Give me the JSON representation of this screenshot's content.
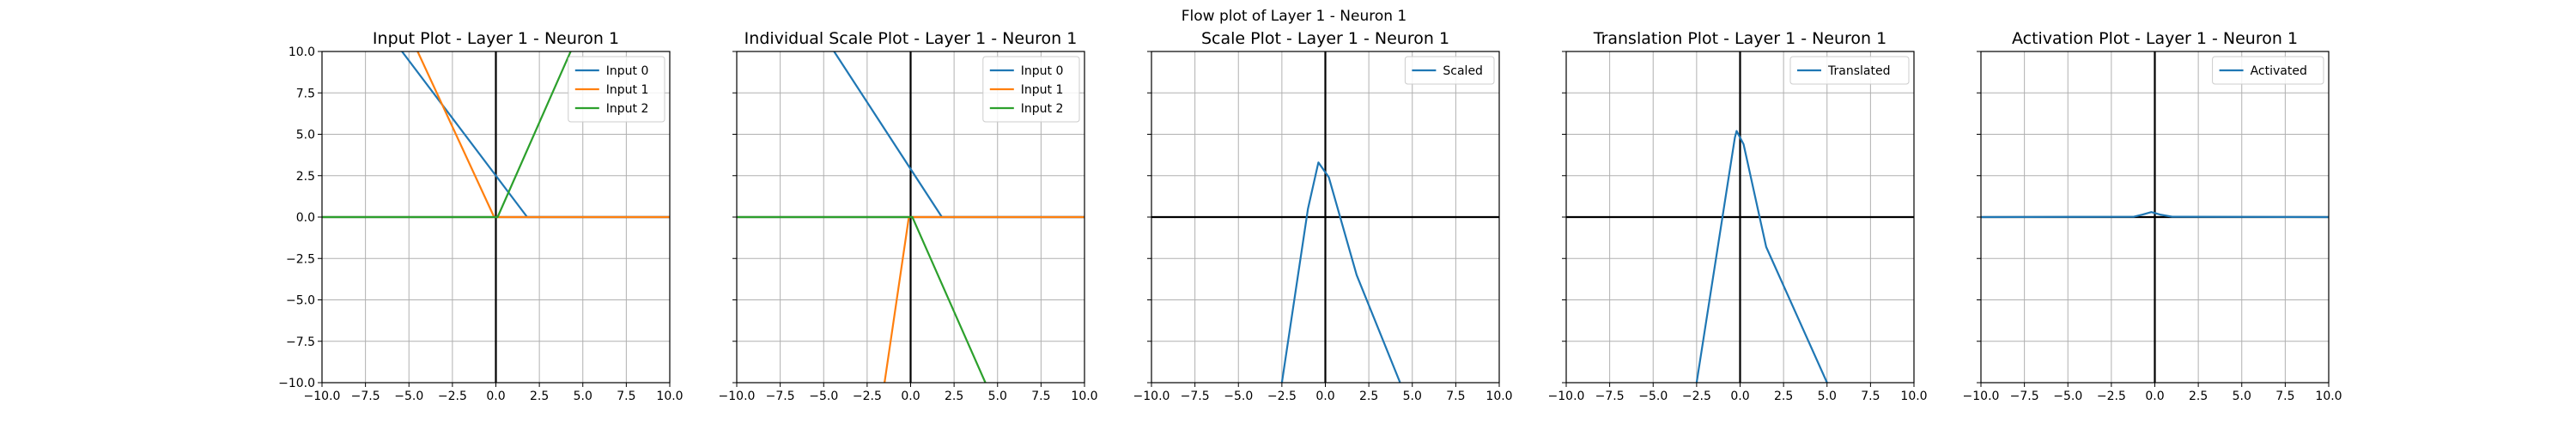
{
  "suptitle": "Flow plot of Layer 1 - Neuron 1",
  "colors": {
    "blue": "#1f77b4",
    "orange": "#ff7f0e",
    "green": "#2ca02c",
    "grid": "#b0b0b0",
    "axis": "#000000"
  },
  "chart_data": [
    {
      "type": "line",
      "title": "Input Plot - Layer 1 - Neuron 1",
      "xlim": [
        -10,
        10
      ],
      "ylim": [
        -10,
        10
      ],
      "xticks": [
        "−10.0",
        "−7.5",
        "−5.0",
        "−2.5",
        "0.0",
        "2.5",
        "5.0",
        "7.5",
        "10.0"
      ],
      "yticks": [
        "−10.0",
        "−7.5",
        "−5.0",
        "−2.5",
        "0.0",
        "2.5",
        "5.0",
        "7.5",
        "10.0"
      ],
      "grid": true,
      "legend": "top-right",
      "show_yticklabels": true,
      "series": [
        {
          "name": "Input 0",
          "color": "#1f77b4",
          "x": [
            -10,
            -5.4,
            1.8,
            10
          ],
          "y": [
            null,
            10,
            0,
            0
          ]
        },
        {
          "name": "Input 1",
          "color": "#ff7f0e",
          "x": [
            -10,
            -4.5,
            -0.1,
            10
          ],
          "y": [
            null,
            10,
            0,
            0
          ]
        },
        {
          "name": "Input 2",
          "color": "#2ca02c",
          "x": [
            -10,
            0.1,
            4.3,
            10
          ],
          "y": [
            0,
            0,
            10,
            null
          ]
        }
      ]
    },
    {
      "type": "line",
      "title": "Individual Scale Plot - Layer 1 - Neuron 1",
      "xlim": [
        -10,
        10
      ],
      "ylim": [
        -10,
        10
      ],
      "xticks": [
        "−10.0",
        "−7.5",
        "−5.0",
        "−2.5",
        "0.0",
        "2.5",
        "5.0",
        "7.5",
        "10.0"
      ],
      "yticks": [],
      "grid": true,
      "legend": "top-right",
      "show_yticklabels": false,
      "series": [
        {
          "name": "Input 0",
          "color": "#1f77b4",
          "x": [
            -4.4,
            1.8,
            10
          ],
          "y": [
            10,
            0,
            0
          ]
        },
        {
          "name": "Input 1",
          "color": "#ff7f0e",
          "x": [
            -1.5,
            -0.1,
            10
          ],
          "y": [
            -10,
            0,
            0
          ]
        },
        {
          "name": "Input 2",
          "color": "#2ca02c",
          "x": [
            -10,
            0.1,
            4.3
          ],
          "y": [
            0,
            0,
            -10
          ]
        }
      ]
    },
    {
      "type": "line",
      "title": "Scale Plot - Layer 1 - Neuron 1",
      "xlim": [
        -10,
        10
      ],
      "ylim": [
        -10,
        10
      ],
      "xticks": [
        "−10.0",
        "−7.5",
        "−5.0",
        "−2.5",
        "0.0",
        "2.5",
        "5.0",
        "7.5",
        "10.0"
      ],
      "yticks": [],
      "grid": true,
      "legend": "top-right",
      "show_yticklabels": false,
      "series": [
        {
          "name": "Scaled",
          "color": "#1f77b4",
          "x": [
            -2.5,
            -1.0,
            -0.4,
            0.2,
            1.8,
            4.3
          ],
          "y": [
            -10,
            0.5,
            3.3,
            2.4,
            -3.5,
            -10
          ]
        }
      ]
    },
    {
      "type": "line",
      "title": "Translation Plot - Layer 1 - Neuron 1",
      "xlim": [
        -10,
        10
      ],
      "ylim": [
        -10,
        10
      ],
      "xticks": [
        "−10.0",
        "−7.5",
        "−5.0",
        "−2.5",
        "0.0",
        "2.5",
        "5.0",
        "7.5",
        "10.0"
      ],
      "yticks": [],
      "grid": true,
      "legend": "top-right",
      "show_yticklabels": false,
      "series": [
        {
          "name": "Translated",
          "color": "#1f77b4",
          "x": [
            -2.5,
            -0.3,
            -0.2,
            0.2,
            1.5,
            5.0
          ],
          "y": [
            -10,
            4.8,
            5.2,
            4.4,
            -1.8,
            -10
          ]
        }
      ]
    },
    {
      "type": "line",
      "title": "Activation Plot - Layer 1 - Neuron 1",
      "xlim": [
        -10,
        10
      ],
      "ylim": [
        -10,
        10
      ],
      "xticks": [
        "−10.0",
        "−7.5",
        "−5.0",
        "−2.5",
        "0.0",
        "2.5",
        "5.0",
        "7.5",
        "10.0"
      ],
      "yticks": [],
      "grid": true,
      "legend": "top-right",
      "show_yticklabels": false,
      "series": [
        {
          "name": "Activated",
          "color": "#1f77b4",
          "x": [
            -10,
            -1.2,
            -0.7,
            -0.2,
            0.3,
            1.0,
            10
          ],
          "y": [
            0,
            0.02,
            0.15,
            0.3,
            0.15,
            0.02,
            0
          ]
        }
      ]
    }
  ]
}
